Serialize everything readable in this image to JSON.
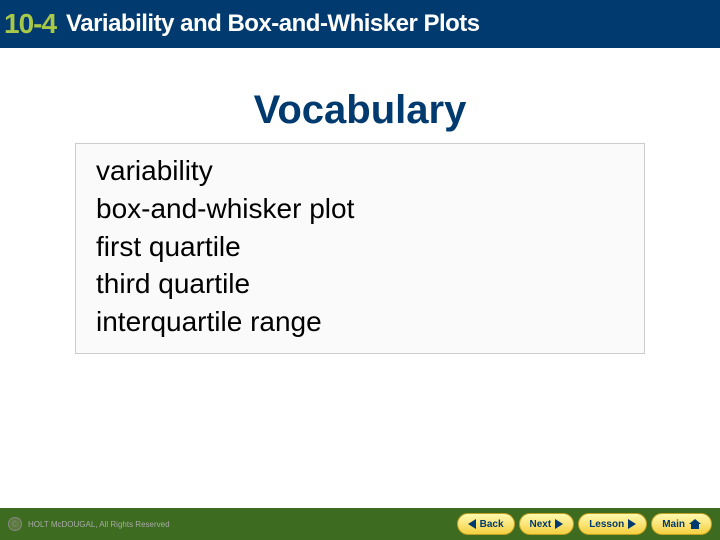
{
  "header": {
    "section_number": "10-4",
    "title": "Variability and Box-and-Whisker Plots",
    "bg_color": "#003a6e",
    "number_color": "#a8c848",
    "title_color": "#ffffff"
  },
  "vocab": {
    "title": "Vocabulary",
    "title_color": "#003a6e",
    "items": [
      "variability",
      "box-and-whisker plot",
      "first quartile",
      "third quartile",
      "interquartile range"
    ],
    "box_border": "#cccccc",
    "box_bg": "#fafafa"
  },
  "footer": {
    "bg_color": "#3d6b1f",
    "copyright": "HOLT McDOUGAL, All Rights Reserved",
    "buttons": {
      "back": "Back",
      "next": "Next",
      "lesson": "Lesson",
      "main": "Main"
    },
    "button_bg_top": "#fff9b0",
    "button_bg_bottom": "#f5d040",
    "button_text_color": "#003a6e"
  }
}
